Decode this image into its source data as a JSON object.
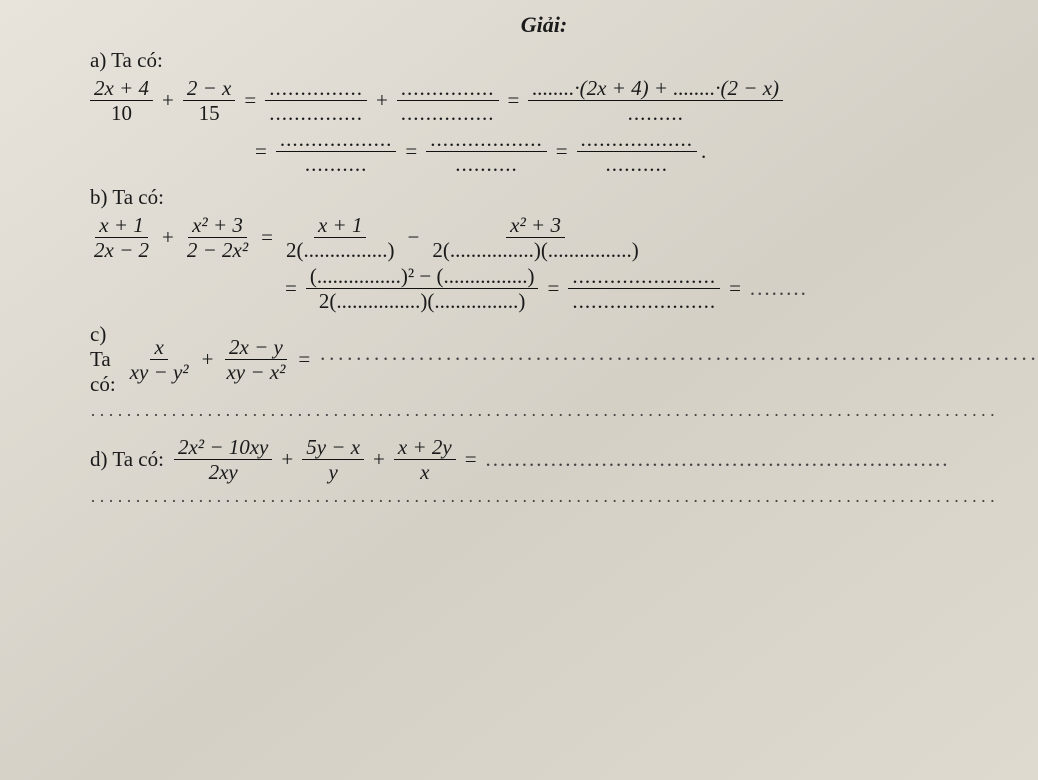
{
  "header": "Giải:",
  "a": {
    "label": "a) Ta có:",
    "lhs_f1_num": "2x + 4",
    "lhs_f1_den": "10",
    "lhs_f2_num": "2 − x",
    "lhs_f2_den": "15",
    "rhs1_num": "........·(2x + 4) + ........·(2 − x)",
    "rhs1_den": ".........",
    "dot_num_short": "...............",
    "dot_den_short": "...............",
    "dot_num_med": "..................",
    "dot_den_wide": "..........",
    "dot_final": "."
  },
  "b": {
    "label": "b) Ta có:",
    "f1_num": "x + 1",
    "f1_den": "2x − 2",
    "f2_num": "x² + 3",
    "f2_den": "2 − 2x²",
    "r1a": "2(................)",
    "r1b_num": "x² + 3",
    "r1b": "2(................)(................)",
    "r2_num": "(................)² − (................)",
    "r2_den": "2(................)(................)",
    "r3_num": ".......................",
    "r3_den": ".......................",
    "trail": "........"
  },
  "c": {
    "label": "c) Ta có:",
    "f1_num": "x",
    "f1_den": "xy − y²",
    "f2_num": "2x − y",
    "f2_den": "xy − x²",
    "trail": "·························································································"
  },
  "d": {
    "label": "d) Ta có:",
    "f1_num": "2x² − 10xy",
    "f1_den": "2xy",
    "f2_num": "5y − x",
    "f2_den": "y",
    "f3_num": "x + 2y",
    "f3_den": "x",
    "trail": "................................................................"
  },
  "dotrow": "································································································································"
}
